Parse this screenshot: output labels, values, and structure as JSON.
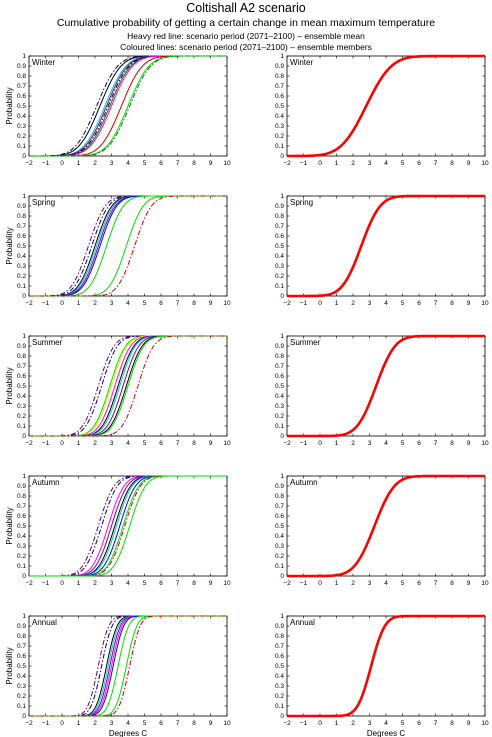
{
  "figure": {
    "title": "Coltishall A2 scenario",
    "subtitle": "Cumulative probability of getting a certain change in mean maximum temperature",
    "note_red": "Heavy red line: scenario period (2071–2100) – ensemble mean",
    "note_colored": "Coloured lines: scenario period (2071–2100) – ensemble members"
  },
  "chart_data": [
    {
      "type": "line",
      "panel": "ensemble-members",
      "season": "Winter",
      "ylabel": "Probability",
      "xlabel": "",
      "xlim": [
        -2,
        10
      ],
      "ylim": [
        0,
        1
      ],
      "xticks": [
        -2,
        -1,
        0,
        1,
        2,
        3,
        4,
        5,
        6,
        7,
        8,
        9,
        10
      ],
      "yticks": [
        0,
        0.1,
        0.2,
        0.3,
        0.4,
        0.5,
        0.6,
        0.7,
        0.8,
        0.9,
        1
      ],
      "series": [
        {
          "color": "#000000",
          "style": "solid",
          "mu": 2.3,
          "sigma": 1.0
        },
        {
          "color": "#000080",
          "style": "dashdot",
          "mu": 2.1,
          "sigma": 1.0
        },
        {
          "color": "#00cccc",
          "style": "solid",
          "mu": 2.6,
          "sigma": 1.0
        },
        {
          "color": "#8000a0",
          "style": "solid",
          "mu": 2.7,
          "sigma": 1.0
        },
        {
          "color": "#008000",
          "style": "solid",
          "mu": 2.9,
          "sigma": 1.0
        },
        {
          "color": "#000000",
          "style": "dashdot",
          "mu": 2.8,
          "sigma": 1.0
        },
        {
          "color": "#ff00ff",
          "style": "solid",
          "mu": 3.0,
          "sigma": 1.0
        },
        {
          "color": "#cc0000",
          "style": "solid",
          "mu": 3.6,
          "sigma": 1.0
        },
        {
          "color": "#00dd00",
          "style": "solid",
          "mu": 4.0,
          "sigma": 1.0
        },
        {
          "color": "#008000",
          "style": "dashdot",
          "mu": 4.1,
          "sigma": 1.0
        }
      ]
    },
    {
      "type": "line",
      "panel": "ensemble-mean",
      "season": "Winter",
      "ylabel": "",
      "xlabel": "",
      "xlim": [
        -2,
        10
      ],
      "ylim": [
        0,
        1
      ],
      "xticks": [
        -2,
        -1,
        0,
        1,
        2,
        3,
        4,
        5,
        6,
        7,
        8,
        9,
        10
      ],
      "yticks": [
        0,
        0.1,
        0.2,
        0.3,
        0.4,
        0.5,
        0.6,
        0.7,
        0.8,
        0.9,
        1
      ],
      "series": [
        {
          "color": "#ff0000",
          "style": "heavy",
          "mu": 2.8,
          "sigma": 1.2
        }
      ]
    },
    {
      "type": "line",
      "panel": "ensemble-members",
      "season": "Spring",
      "ylabel": "Probability",
      "xlabel": "",
      "xlim": [
        -2,
        10
      ],
      "ylim": [
        0,
        1
      ],
      "xticks": [
        -2,
        -1,
        0,
        1,
        2,
        3,
        4,
        5,
        6,
        7,
        8,
        9,
        10
      ],
      "yticks": [
        0,
        0.1,
        0.2,
        0.3,
        0.4,
        0.5,
        0.6,
        0.7,
        0.8,
        0.9,
        1
      ],
      "series": [
        {
          "color": "#6a006a",
          "style": "dashdot",
          "mu": 1.6,
          "sigma": 0.8
        },
        {
          "color": "#000080",
          "style": "dashdot",
          "mu": 1.8,
          "sigma": 0.8
        },
        {
          "color": "#000000",
          "style": "solid",
          "mu": 2.0,
          "sigma": 0.8
        },
        {
          "color": "#00cccc",
          "style": "solid",
          "mu": 2.1,
          "sigma": 0.8
        },
        {
          "color": "#8000a0",
          "style": "solid",
          "mu": 2.2,
          "sigma": 0.8
        },
        {
          "color": "#0000ff",
          "style": "solid",
          "mu": 2.3,
          "sigma": 0.8
        },
        {
          "color": "#00dd00",
          "style": "solid",
          "mu": 2.7,
          "sigma": 0.8
        },
        {
          "color": "#00dd00",
          "style": "solid",
          "mu": 3.9,
          "sigma": 0.8
        },
        {
          "color": "#cc0000",
          "style": "dashdot",
          "mu": 4.4,
          "sigma": 0.8
        }
      ]
    },
    {
      "type": "line",
      "panel": "ensemble-mean",
      "season": "Spring",
      "ylabel": "",
      "xlabel": "",
      "xlim": [
        -2,
        10
      ],
      "ylim": [
        0,
        1
      ],
      "xticks": [
        -2,
        -1,
        0,
        1,
        2,
        3,
        4,
        5,
        6,
        7,
        8,
        9,
        10
      ],
      "yticks": [
        0,
        0.1,
        0.2,
        0.3,
        0.4,
        0.5,
        0.6,
        0.7,
        0.8,
        0.9,
        1
      ],
      "series": [
        {
          "color": "#ff0000",
          "style": "heavy",
          "mu": 2.5,
          "sigma": 0.9
        }
      ]
    },
    {
      "type": "line",
      "panel": "ensemble-members",
      "season": "Summer",
      "ylabel": "Probability",
      "xlabel": "",
      "xlim": [
        -2,
        10
      ],
      "ylim": [
        0,
        1
      ],
      "xticks": [
        -2,
        -1,
        0,
        1,
        2,
        3,
        4,
        5,
        6,
        7,
        8,
        9,
        10
      ],
      "yticks": [
        0,
        0.1,
        0.2,
        0.3,
        0.4,
        0.5,
        0.6,
        0.7,
        0.8,
        0.9,
        1
      ],
      "series": [
        {
          "color": "#6a006a",
          "style": "dashdot",
          "mu": 2.2,
          "sigma": 0.75
        },
        {
          "color": "#000080",
          "style": "dashdot",
          "mu": 2.4,
          "sigma": 0.75
        },
        {
          "color": "#00dd00",
          "style": "solid",
          "mu": 2.9,
          "sigma": 0.75
        },
        {
          "color": "#ffdd00",
          "style": "solid",
          "mu": 3.0,
          "sigma": 0.75
        },
        {
          "color": "#ff00ff",
          "style": "solid",
          "mu": 3.2,
          "sigma": 0.75
        },
        {
          "color": "#000000",
          "style": "solid",
          "mu": 3.4,
          "sigma": 0.75
        },
        {
          "color": "#00cccc",
          "style": "solid",
          "mu": 3.5,
          "sigma": 0.75
        },
        {
          "color": "#8000a0",
          "style": "solid",
          "mu": 3.7,
          "sigma": 0.75
        },
        {
          "color": "#000000",
          "style": "solid",
          "mu": 3.9,
          "sigma": 0.75
        },
        {
          "color": "#00dd00",
          "style": "solid",
          "mu": 4.0,
          "sigma": 0.75
        },
        {
          "color": "#cc0000",
          "style": "dashdot",
          "mu": 4.6,
          "sigma": 0.75
        }
      ]
    },
    {
      "type": "line",
      "panel": "ensemble-mean",
      "season": "Summer",
      "ylabel": "",
      "xlabel": "",
      "xlim": [
        -2,
        10
      ],
      "ylim": [
        0,
        1
      ],
      "xticks": [
        -2,
        -1,
        0,
        1,
        2,
        3,
        4,
        5,
        6,
        7,
        8,
        9,
        10
      ],
      "yticks": [
        0,
        0.1,
        0.2,
        0.3,
        0.4,
        0.5,
        0.6,
        0.7,
        0.8,
        0.9,
        1
      ],
      "series": [
        {
          "color": "#ff0000",
          "style": "heavy",
          "mu": 3.4,
          "sigma": 0.9
        }
      ]
    },
    {
      "type": "line",
      "panel": "ensemble-members",
      "season": "Autumn",
      "ylabel": "Probability",
      "xlabel": "",
      "xlim": [
        -2,
        10
      ],
      "ylim": [
        0,
        1
      ],
      "xticks": [
        -2,
        -1,
        0,
        1,
        2,
        3,
        4,
        5,
        6,
        7,
        8,
        9,
        10
      ],
      "yticks": [
        0,
        0.1,
        0.2,
        0.3,
        0.4,
        0.5,
        0.6,
        0.7,
        0.8,
        0.9,
        1
      ],
      "series": [
        {
          "color": "#6a006a",
          "style": "dashdot",
          "mu": 2.2,
          "sigma": 0.75
        },
        {
          "color": "#000080",
          "style": "dashdot",
          "mu": 2.4,
          "sigma": 0.75
        },
        {
          "color": "#ff00ff",
          "style": "solid",
          "mu": 2.8,
          "sigma": 0.75
        },
        {
          "color": "#8000a0",
          "style": "solid",
          "mu": 3.0,
          "sigma": 0.75
        },
        {
          "color": "#000000",
          "style": "solid",
          "mu": 3.2,
          "sigma": 0.75
        },
        {
          "color": "#00cccc",
          "style": "solid",
          "mu": 3.3,
          "sigma": 0.75
        },
        {
          "color": "#0000ff",
          "style": "solid",
          "mu": 3.5,
          "sigma": 0.75
        },
        {
          "color": "#00dd00",
          "style": "solid",
          "mu": 3.7,
          "sigma": 0.75
        },
        {
          "color": "#cc0000",
          "style": "dashdot",
          "mu": 3.8,
          "sigma": 0.75
        },
        {
          "color": "#00dd00",
          "style": "solid",
          "mu": 4.1,
          "sigma": 0.75
        }
      ]
    },
    {
      "type": "line",
      "panel": "ensemble-mean",
      "season": "Autumn",
      "ylabel": "",
      "xlabel": "",
      "xlim": [
        -2,
        10
      ],
      "ylim": [
        0,
        1
      ],
      "xticks": [
        -2,
        -1,
        0,
        1,
        2,
        3,
        4,
        5,
        6,
        7,
        8,
        9,
        10
      ],
      "yticks": [
        0,
        0.1,
        0.2,
        0.3,
        0.4,
        0.5,
        0.6,
        0.7,
        0.8,
        0.9,
        1
      ],
      "series": [
        {
          "color": "#ff0000",
          "style": "heavy",
          "mu": 3.3,
          "sigma": 0.95
        }
      ]
    },
    {
      "type": "line",
      "panel": "ensemble-members",
      "season": "Annual",
      "ylabel": "Probability",
      "xlabel": "Degrees C",
      "xlim": [
        -2,
        10
      ],
      "ylim": [
        0,
        1
      ],
      "xticks": [
        -2,
        -1,
        0,
        1,
        2,
        3,
        4,
        5,
        6,
        7,
        8,
        9,
        10
      ],
      "yticks": [
        0,
        0.1,
        0.2,
        0.3,
        0.4,
        0.5,
        0.6,
        0.7,
        0.8,
        0.9,
        1
      ],
      "series": [
        {
          "color": "#6a006a",
          "style": "dashdot",
          "mu": 2.2,
          "sigma": 0.5
        },
        {
          "color": "#000080",
          "style": "dashdot",
          "mu": 2.4,
          "sigma": 0.5
        },
        {
          "color": "#000000",
          "style": "solid",
          "mu": 2.7,
          "sigma": 0.5
        },
        {
          "color": "#00cccc",
          "style": "solid",
          "mu": 2.8,
          "sigma": 0.5
        },
        {
          "color": "#8000a0",
          "style": "solid",
          "mu": 2.9,
          "sigma": 0.5
        },
        {
          "color": "#ff00ff",
          "style": "solid",
          "mu": 3.0,
          "sigma": 0.5
        },
        {
          "color": "#0000ff",
          "style": "solid",
          "mu": 3.1,
          "sigma": 0.5
        },
        {
          "color": "#00dd00",
          "style": "solid",
          "mu": 3.4,
          "sigma": 0.5
        },
        {
          "color": "#00dd00",
          "style": "solid",
          "mu": 3.9,
          "sigma": 0.5
        },
        {
          "color": "#cc0000",
          "style": "dashdot",
          "mu": 4.1,
          "sigma": 0.5
        }
      ]
    },
    {
      "type": "line",
      "panel": "ensemble-mean",
      "season": "Annual",
      "ylabel": "",
      "xlabel": "Degrees C",
      "xlim": [
        -2,
        10
      ],
      "ylim": [
        0,
        1
      ],
      "xticks": [
        -2,
        -1,
        0,
        1,
        2,
        3,
        4,
        5,
        6,
        7,
        8,
        9,
        10
      ],
      "yticks": [
        0,
        0.1,
        0.2,
        0.3,
        0.4,
        0.5,
        0.6,
        0.7,
        0.8,
        0.9,
        1
      ],
      "series": [
        {
          "color": "#ff0000",
          "style": "heavy",
          "mu": 3.1,
          "sigma": 0.65
        }
      ]
    }
  ]
}
